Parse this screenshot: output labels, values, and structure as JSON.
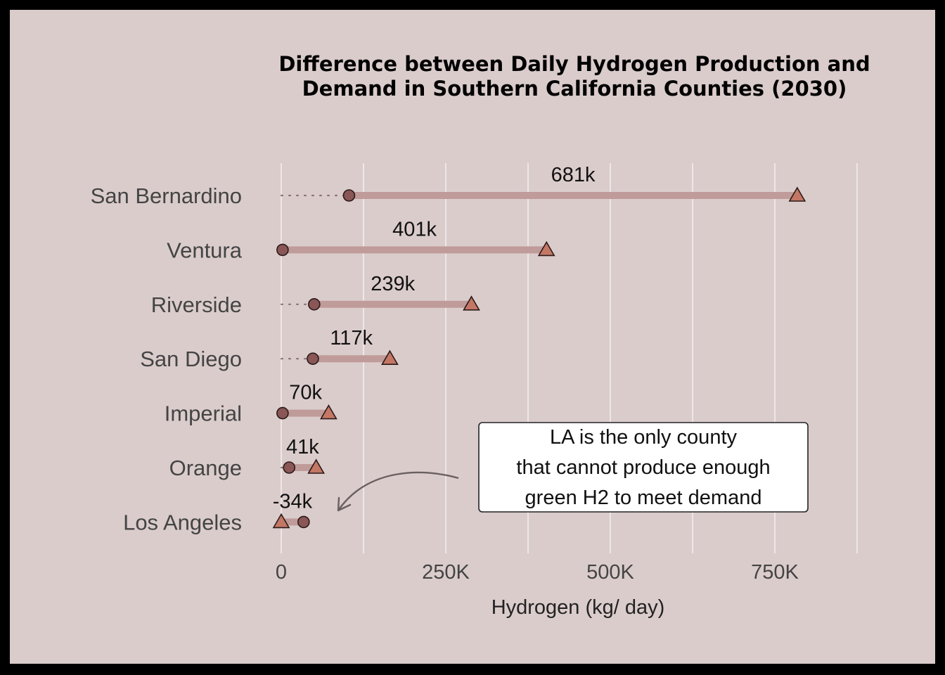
{
  "chart_data": {
    "type": "dumbbell",
    "title_lines": [
      "Difference between Daily Hydrogen Production and",
      "Demand in Southern California Counties (2030)"
    ],
    "xlabel": "Hydrogen (kg/ day)",
    "xlim": [
      0,
      880000
    ],
    "xticks": [
      {
        "value": 0,
        "label": "0"
      },
      {
        "value": 250000,
        "label": "250K"
      },
      {
        "value": 500000,
        "label": "500K"
      },
      {
        "value": 750000,
        "label": "750K"
      }
    ],
    "gridlines": [
      0,
      125000,
      250000,
      375000,
      500000,
      625000,
      750000,
      875000
    ],
    "categories": [
      "San Bernardino",
      "Ventura",
      "Riverside",
      "San Diego",
      "Imperial",
      "Orange",
      "Los Angeles"
    ],
    "series": [
      {
        "marker": "circle",
        "values": [
          103000,
          2000,
          50000,
          48000,
          2000,
          12000,
          34000
        ]
      },
      {
        "marker": "triangle",
        "values": [
          784000,
          403000,
          289000,
          165000,
          72000,
          53000,
          0
        ]
      }
    ],
    "difference_labels": [
      "681k",
      "401k",
      "239k",
      "117k",
      "70k",
      "41k",
      "-34k"
    ],
    "colors": {
      "background": "#dbcccc",
      "bar": "#bf9b99",
      "circle": "#8a5656",
      "triangle": "#c47764",
      "grid": "#f3eded",
      "dotted": "#8a7676"
    },
    "annotation": {
      "lines": [
        "LA is the only county",
        "that cannot produce enough",
        "green H2 to meet demand"
      ]
    }
  }
}
